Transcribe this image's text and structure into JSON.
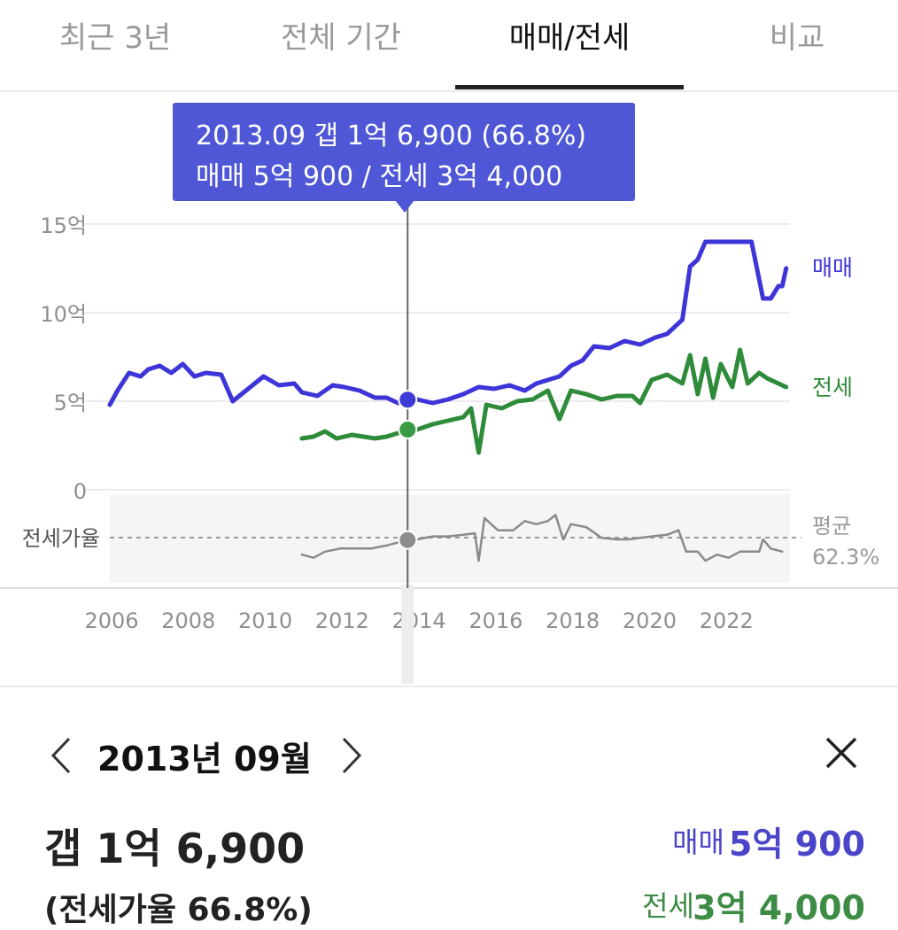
{
  "tabs": [
    {
      "label": "최근 3년"
    },
    {
      "label": "전체 기간"
    },
    {
      "label": "매매/전세"
    },
    {
      "label": "비교"
    }
  ],
  "active_tab": "매매/전세",
  "tooltip": {
    "line1": "2013.09  갭 1억 6,900 (66.8%)",
    "line2": "매매 5억 900 / 전세 3억 4,000"
  },
  "colors": {
    "sale": "#3d35d8",
    "jeonse": "#2e8b3a",
    "ratio": "#8a8a8a",
    "tooltip_bg": "#4f57d6"
  },
  "chart_data": {
    "type": "line",
    "title": "",
    "xlabel": "",
    "ylabel": "",
    "x_ticks": [
      "2006",
      "2008",
      "2010",
      "2012",
      "2014",
      "2016",
      "2018",
      "2020",
      "2022"
    ],
    "y_ticks": [
      "15억",
      "10억",
      "5억",
      "0"
    ],
    "ylim": [
      0,
      15
    ],
    "y_unit": "억",
    "xlim": [
      2006.0,
      2023.75
    ],
    "grid": true,
    "series": [
      {
        "name": "매매",
        "points": [
          [
            2006.0,
            4.8
          ],
          [
            2006.2,
            5.6
          ],
          [
            2006.5,
            6.6
          ],
          [
            2006.8,
            6.4
          ],
          [
            2007.0,
            6.8
          ],
          [
            2007.3,
            7.0
          ],
          [
            2007.6,
            6.6
          ],
          [
            2007.9,
            7.1
          ],
          [
            2008.2,
            6.4
          ],
          [
            2008.5,
            6.6
          ],
          [
            2008.9,
            6.5
          ],
          [
            2009.2,
            5.0
          ],
          [
            2009.6,
            5.7
          ],
          [
            2010.0,
            6.4
          ],
          [
            2010.4,
            5.9
          ],
          [
            2010.8,
            6.0
          ],
          [
            2011.0,
            5.5
          ],
          [
            2011.4,
            5.3
          ],
          [
            2011.8,
            5.9
          ],
          [
            2012.1,
            5.8
          ],
          [
            2012.5,
            5.6
          ],
          [
            2012.9,
            5.2
          ],
          [
            2013.2,
            5.2
          ],
          [
            2013.5,
            4.9
          ],
          [
            2013.75,
            5.09
          ],
          [
            2014.0,
            5.1
          ],
          [
            2014.4,
            4.9
          ],
          [
            2014.8,
            5.1
          ],
          [
            2015.2,
            5.4
          ],
          [
            2015.6,
            5.8
          ],
          [
            2016.0,
            5.7
          ],
          [
            2016.4,
            5.9
          ],
          [
            2016.8,
            5.6
          ],
          [
            2017.1,
            6.0
          ],
          [
            2017.4,
            6.2
          ],
          [
            2017.7,
            6.4
          ],
          [
            2018.0,
            7.0
          ],
          [
            2018.3,
            7.3
          ],
          [
            2018.6,
            8.1
          ],
          [
            2019.0,
            8.0
          ],
          [
            2019.4,
            8.4
          ],
          [
            2019.8,
            8.2
          ],
          [
            2020.2,
            8.6
          ],
          [
            2020.5,
            8.8
          ],
          [
            2020.9,
            9.6
          ],
          [
            2021.1,
            12.6
          ],
          [
            2021.3,
            13.0
          ],
          [
            2021.5,
            14.0
          ],
          [
            2021.8,
            14.0
          ],
          [
            2022.1,
            14.0
          ],
          [
            2022.5,
            14.0
          ],
          [
            2022.7,
            14.0
          ],
          [
            2023.0,
            10.8
          ],
          [
            2023.2,
            10.8
          ],
          [
            2023.4,
            11.5
          ],
          [
            2023.5,
            11.5
          ],
          [
            2023.6,
            12.5
          ]
        ]
      },
      {
        "name": "전세",
        "points": [
          [
            2011.0,
            2.9
          ],
          [
            2011.3,
            3.0
          ],
          [
            2011.6,
            3.3
          ],
          [
            2011.9,
            2.9
          ],
          [
            2012.3,
            3.1
          ],
          [
            2012.6,
            3.0
          ],
          [
            2012.9,
            2.9
          ],
          [
            2013.2,
            3.0
          ],
          [
            2013.5,
            3.2
          ],
          [
            2013.75,
            3.4
          ],
          [
            2014.0,
            3.4
          ],
          [
            2014.4,
            3.7
          ],
          [
            2014.8,
            3.9
          ],
          [
            2015.2,
            4.1
          ],
          [
            2015.4,
            4.6
          ],
          [
            2015.6,
            2.1
          ],
          [
            2015.8,
            4.8
          ],
          [
            2016.2,
            4.6
          ],
          [
            2016.6,
            5.0
          ],
          [
            2017.0,
            5.1
          ],
          [
            2017.4,
            5.6
          ],
          [
            2017.7,
            4.0
          ],
          [
            2018.0,
            5.6
          ],
          [
            2018.4,
            5.4
          ],
          [
            2018.8,
            5.1
          ],
          [
            2019.2,
            5.3
          ],
          [
            2019.6,
            5.3
          ],
          [
            2019.8,
            4.9
          ],
          [
            2020.1,
            6.2
          ],
          [
            2020.5,
            6.5
          ],
          [
            2020.9,
            6.0
          ],
          [
            2021.1,
            7.6
          ],
          [
            2021.3,
            5.4
          ],
          [
            2021.5,
            7.4
          ],
          [
            2021.7,
            5.2
          ],
          [
            2021.9,
            7.1
          ],
          [
            2022.2,
            5.8
          ],
          [
            2022.4,
            7.9
          ],
          [
            2022.6,
            6.0
          ],
          [
            2022.9,
            6.6
          ],
          [
            2023.1,
            6.3
          ],
          [
            2023.4,
            6.0
          ],
          [
            2023.6,
            5.8
          ]
        ]
      },
      {
        "name": "전세가율",
        "points": [
          [
            2011.0,
            62
          ],
          [
            2011.3,
            61
          ],
          [
            2011.6,
            63
          ],
          [
            2012.0,
            64
          ],
          [
            2012.4,
            64
          ],
          [
            2012.8,
            64
          ],
          [
            2013.2,
            65
          ],
          [
            2013.5,
            66
          ],
          [
            2013.75,
            66.8
          ],
          [
            2014.0,
            67
          ],
          [
            2014.4,
            68
          ],
          [
            2014.8,
            68
          ],
          [
            2015.2,
            68.5
          ],
          [
            2015.5,
            69
          ],
          [
            2015.6,
            60
          ],
          [
            2015.75,
            74
          ],
          [
            2016.1,
            70
          ],
          [
            2016.5,
            70
          ],
          [
            2016.8,
            73
          ],
          [
            2017.1,
            72
          ],
          [
            2017.4,
            73
          ],
          [
            2017.6,
            75
          ],
          [
            2017.8,
            67
          ],
          [
            2018.0,
            72
          ],
          [
            2018.4,
            71
          ],
          [
            2018.8,
            67.5
          ],
          [
            2019.2,
            67
          ],
          [
            2019.5,
            67
          ],
          [
            2019.8,
            67.5
          ],
          [
            2020.1,
            68
          ],
          [
            2020.5,
            68.5
          ],
          [
            2020.8,
            70
          ],
          [
            2021.0,
            63
          ],
          [
            2021.3,
            63
          ],
          [
            2021.5,
            60
          ],
          [
            2021.8,
            62
          ],
          [
            2022.1,
            61
          ],
          [
            2022.4,
            63
          ],
          [
            2022.7,
            63
          ],
          [
            2022.9,
            63
          ],
          [
            2023.0,
            67
          ],
          [
            2023.2,
            64
          ],
          [
            2023.5,
            63
          ]
        ]
      }
    ],
    "series_labels": {
      "sale": "매매",
      "jeonse": "전세"
    },
    "ratio_label": "전세가율",
    "avg_label": "평균",
    "avg_value": "62.3%",
    "avg_ratio": 62.3,
    "selected_x": 2013.75,
    "selected_sale": 5.09,
    "selected_jeonse": 3.4,
    "selected_ratio": 66.8
  },
  "detail": {
    "date": "2013년 09월",
    "gap": "갭 1억 6,900",
    "ratio": "(전세가율 66.8%)",
    "sale_label": "매매",
    "sale_value": "5억 900",
    "jeonse_label": "전세",
    "jeonse_value": "3억 4,000"
  }
}
